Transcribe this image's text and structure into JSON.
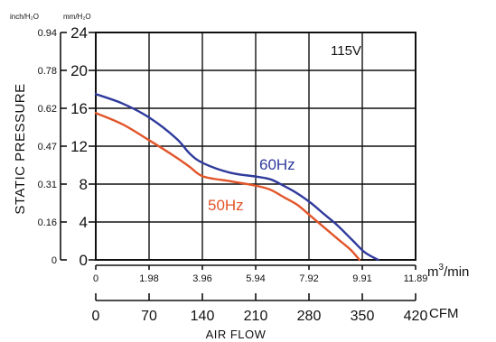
{
  "chart_data": {
    "type": "line",
    "voltage_label": "115V",
    "y_axis": {
      "label": "STATIC PRESSURE",
      "main_unit": "mm/H₂O",
      "secondary_unit": "inch/H₂O",
      "main_ticks": [
        "0",
        "4",
        "8",
        "12",
        "16",
        "20",
        "24"
      ],
      "secondary_ticks": [
        "0",
        "0.16",
        "0.31",
        "0.47",
        "0.62",
        "0.78",
        "0.94"
      ],
      "ylim": [
        0,
        24
      ]
    },
    "x_axis": {
      "label": "AIR FLOW",
      "m3_unit_base": "m",
      "m3_unit_exp": "3",
      "m3_unit_tail": "/min",
      "m3_ticks": [
        "0",
        "1.98",
        "3.96",
        "5.94",
        "7.92",
        "9.91",
        "11.89"
      ],
      "cfm_unit": "CFM",
      "cfm_ticks": [
        "0",
        "70",
        "140",
        "210",
        "280",
        "350",
        "420"
      ],
      "xlim": [
        0,
        11.89
      ]
    },
    "series": [
      {
        "name": "60Hz",
        "color": "#2f3a9c",
        "x": [
          0,
          1.0,
          2.0,
          3.0,
          3.5,
          4.0,
          5.0,
          5.94,
          6.5,
          7.0,
          7.5,
          8.0,
          8.5,
          9.0,
          9.5,
          10.0,
          10.5
        ],
        "y": [
          17.5,
          16.5,
          15.0,
          12.8,
          11.2,
          10.2,
          9.2,
          8.8,
          8.5,
          7.8,
          7.0,
          6.0,
          4.8,
          3.6,
          2.2,
          0.8,
          0
        ]
      },
      {
        "name": "50Hz",
        "color": "#e2552a",
        "x": [
          0,
          1.0,
          2.0,
          3.0,
          3.5,
          4.0,
          5.0,
          6.0,
          6.5,
          7.0,
          7.5,
          8.0,
          8.5,
          9.0,
          9.5,
          9.8
        ],
        "y": [
          15.5,
          14.3,
          12.6,
          10.8,
          9.8,
          8.8,
          8.3,
          7.8,
          7.4,
          6.6,
          5.8,
          4.6,
          3.4,
          2.2,
          1.0,
          0
        ]
      }
    ],
    "grid": true
  }
}
